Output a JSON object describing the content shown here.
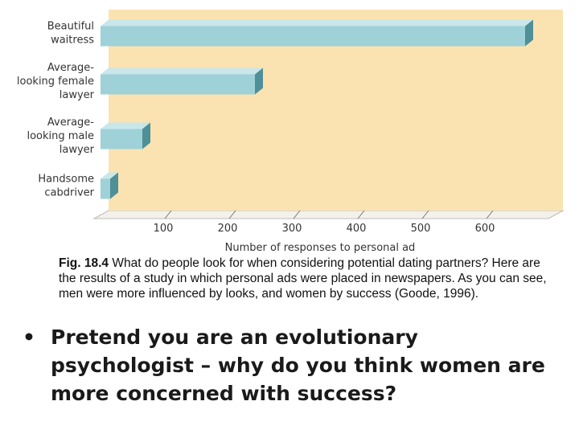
{
  "chart_data": {
    "type": "bar",
    "orientation": "horizontal",
    "categories": [
      [
        "Beautiful",
        "waitress"
      ],
      [
        "Average-",
        "looking female",
        "lawyer"
      ],
      [
        "Average-",
        "looking male",
        "lawyer"
      ],
      [
        "Handsome",
        "cabdriver"
      ]
    ],
    "values": [
      660,
      240,
      65,
      15
    ],
    "xticks": [
      100,
      200,
      300,
      400,
      500,
      600
    ],
    "xlim": [
      0,
      700
    ],
    "xlabel": "Number of responses to personal ad",
    "ylabel": "",
    "title": "",
    "grid": false,
    "colors": {
      "bar_front": "#9fd1d8",
      "bar_top": "#c9e6ea",
      "bar_side": "#4f8f98",
      "background": "#fae3b1",
      "floor": "#f3f1ea"
    }
  },
  "caption": {
    "fig_label": "Fig. 18.4",
    "text": " What do people look for when considering potential dating partners? Here are the results of a study in which personal ads were placed in newspapers. As you can see, men were more influenced by looks, and women by success (Goode, 1996)."
  },
  "bullet": {
    "symbol": "•",
    "text": "Pretend you are an evolutionary psychologist – why do you think women are more concerned with success?"
  }
}
